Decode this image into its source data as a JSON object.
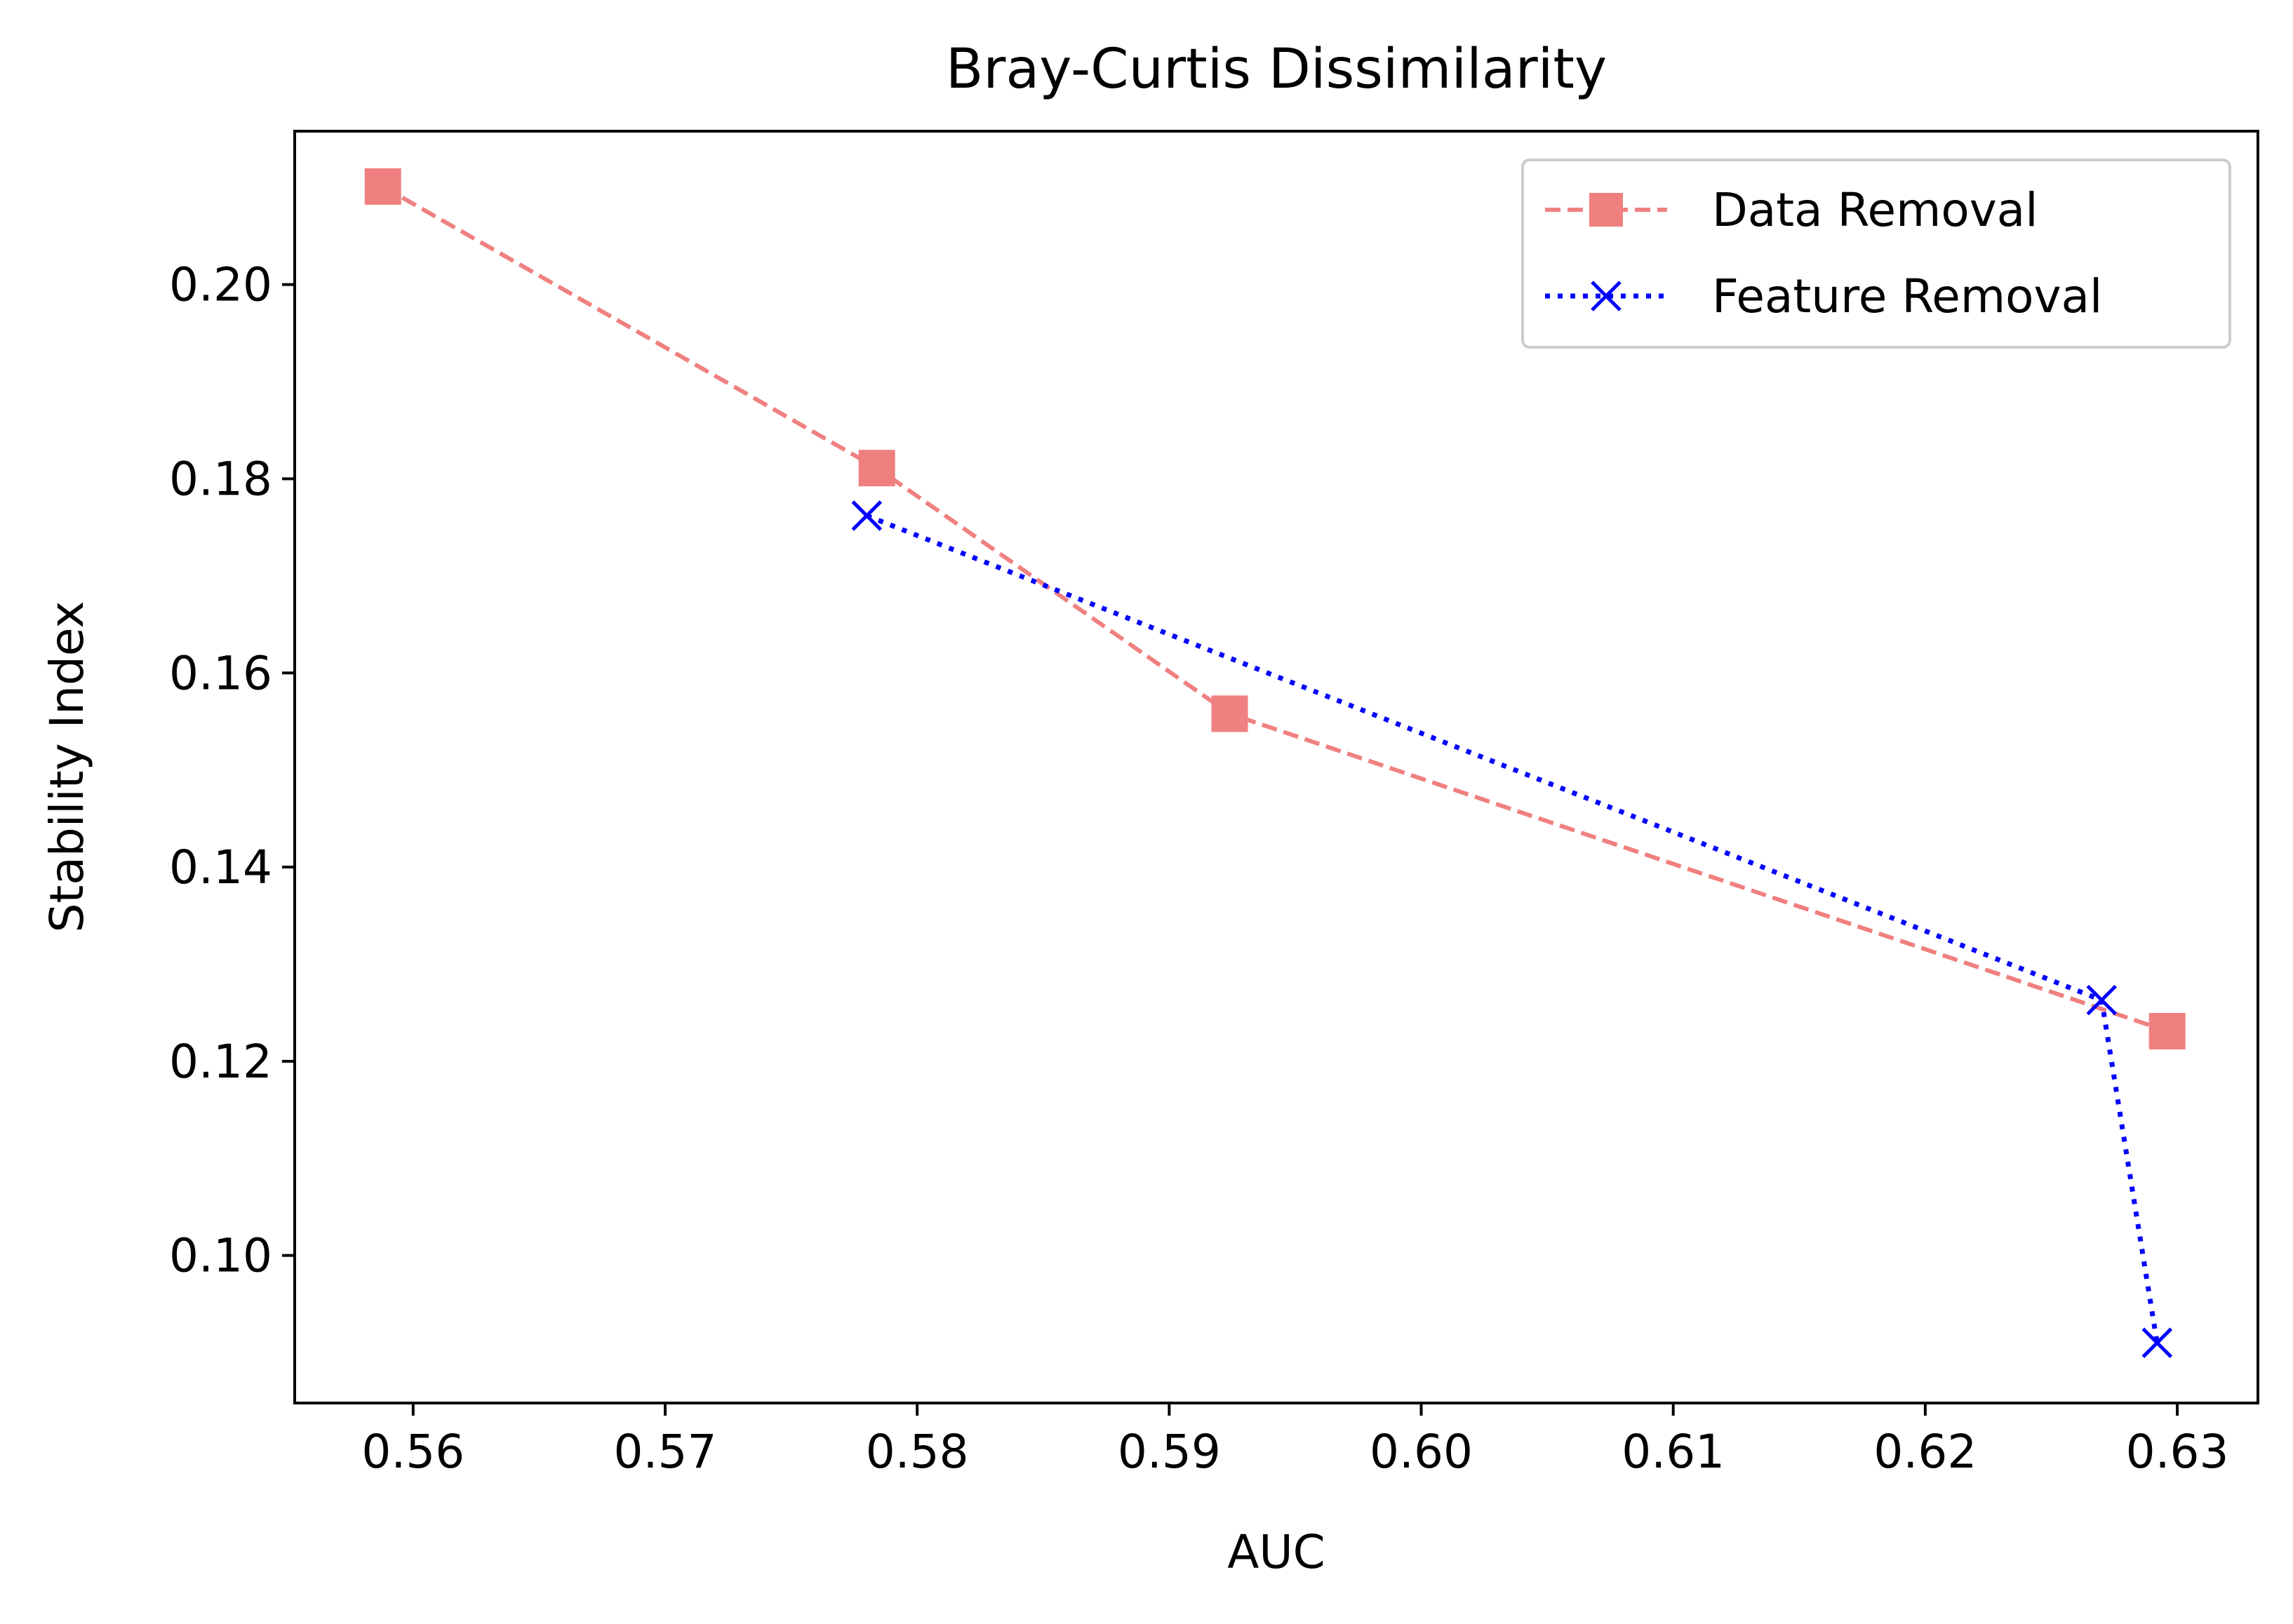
{
  "chart_data": {
    "type": "line",
    "title": "Bray-Curtis Dissimilarity",
    "xlabel": "AUC",
    "ylabel": "Stability Index",
    "xlim": [
      0.5553,
      0.6332
    ],
    "ylim": [
      0.0848,
      0.2158
    ],
    "xticks": [
      0.56,
      0.57,
      0.58,
      0.59,
      0.6,
      0.61,
      0.62,
      0.63
    ],
    "xtick_labels": [
      "0.56",
      "0.57",
      "0.58",
      "0.59",
      "0.60",
      "0.61",
      "0.62",
      "0.63"
    ],
    "yticks": [
      0.1,
      0.12,
      0.14,
      0.16,
      0.18,
      0.2
    ],
    "ytick_labels": [
      "0.10",
      "0.12",
      "0.14",
      "0.16",
      "0.18",
      "0.20"
    ],
    "grid": false,
    "legend_position": "top-right",
    "series": [
      {
        "name": "Data Removal",
        "color": "#f08080",
        "line_style": "dashed",
        "marker": "square",
        "x": [
          0.5588,
          0.5784,
          0.5924,
          0.6296
        ],
        "y": [
          0.2101,
          0.1811,
          0.1558,
          0.1231
        ]
      },
      {
        "name": "Feature Removal",
        "color": "#0000ff",
        "line_style": "dotted",
        "marker": "x",
        "x": [
          0.578,
          0.627,
          0.6292
        ],
        "y": [
          0.1762,
          0.1263,
          0.091
        ]
      }
    ]
  }
}
